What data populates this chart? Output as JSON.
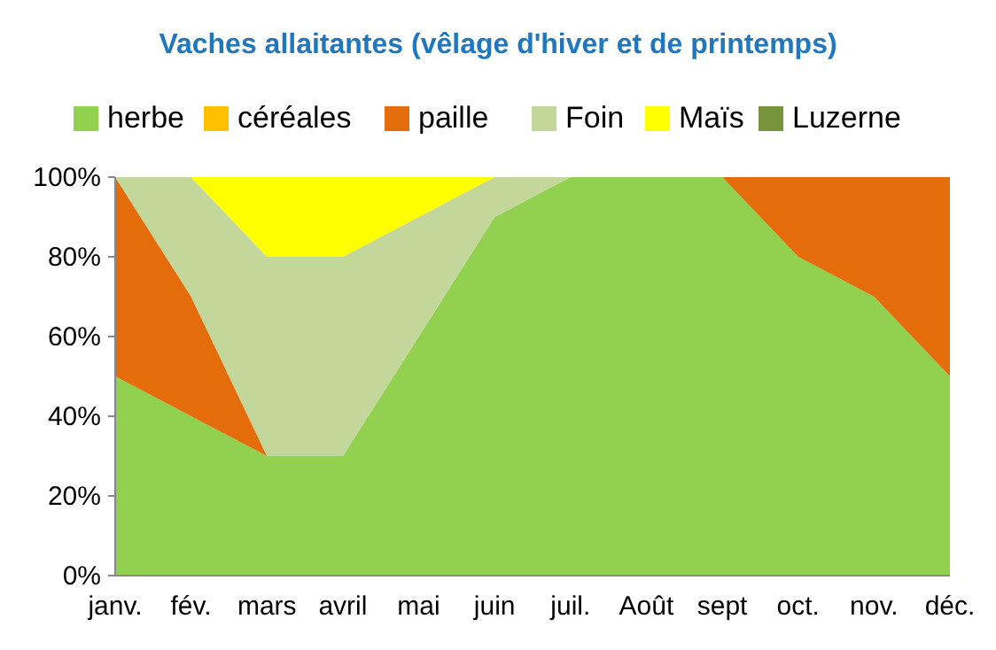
{
  "chart_data": {
    "type": "area",
    "title": "Vaches allaitantes (vêlage d'hiver et de printemps)",
    "stacked": true,
    "legend": "top",
    "categories": [
      "janv.",
      "fév.",
      "mars",
      "avril",
      "mai",
      "juin",
      "juil.",
      "Août",
      "sept",
      "oct.",
      "nov.",
      "déc."
    ],
    "series": [
      {
        "name": "herbe",
        "color": "#92d050",
        "values": [
          50,
          40,
          30,
          30,
          60,
          90,
          100,
          100,
          100,
          80,
          70,
          50
        ]
      },
      {
        "name": "céréales",
        "color": "#ffc000",
        "values": [
          null,
          null,
          null,
          null,
          null,
          null,
          null,
          null,
          null,
          null,
          null,
          null
        ]
      },
      {
        "name": "paille",
        "color": "#e46c0a",
        "values": [
          50,
          30,
          0,
          null,
          null,
          null,
          null,
          null,
          0,
          20,
          30,
          50
        ]
      },
      {
        "name": "Foin",
        "color": "#c4d79b",
        "values": [
          0,
          30,
          50,
          50,
          30,
          10,
          0,
          null,
          null,
          null,
          null,
          null
        ]
      },
      {
        "name": "Maïs",
        "color": "#ffff00",
        "values": [
          null,
          0,
          20,
          20,
          10,
          0,
          null,
          null,
          null,
          null,
          null,
          null
        ]
      },
      {
        "name": "Luzerne",
        "color": "#77933c",
        "values": [
          null,
          null,
          null,
          null,
          null,
          null,
          null,
          null,
          null,
          null,
          null,
          null
        ]
      }
    ],
    "ylim": [
      0,
      100
    ],
    "yticks": [
      {
        "value": 0,
        "label": "0%"
      },
      {
        "value": 20,
        "label": "20%"
      },
      {
        "value": 40,
        "label": "40%"
      },
      {
        "value": 60,
        "label": "60%"
      },
      {
        "value": 80,
        "label": "80%"
      },
      {
        "value": 100,
        "label": "100%"
      }
    ]
  }
}
